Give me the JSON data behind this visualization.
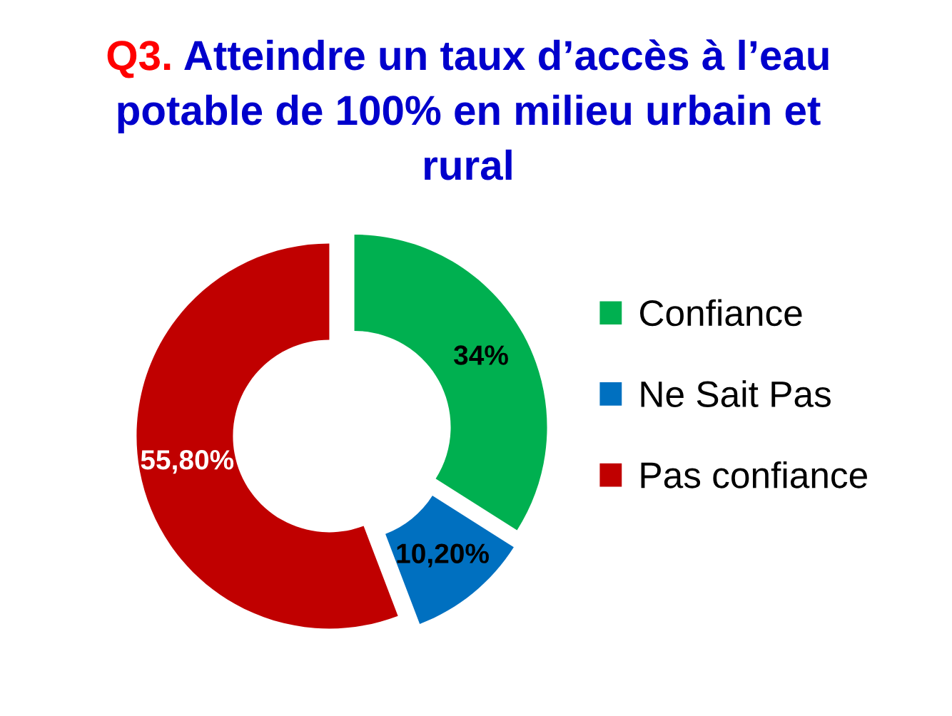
{
  "chart_data": {
    "type": "donut",
    "title": "Q3. Atteindre un taux d’accès à l’eau potable de 100% en milieu urbain et rural",
    "categories": [
      "Confiance",
      "Ne Sait Pas",
      "Pas confiance"
    ],
    "values": [
      34,
      10.2,
      55.8
    ],
    "colors": [
      "#00b050",
      "#0070c0",
      "#c00000"
    ],
    "value_labels": [
      "34%",
      "10,20%",
      "55,80%"
    ],
    "legend": "right"
  }
}
